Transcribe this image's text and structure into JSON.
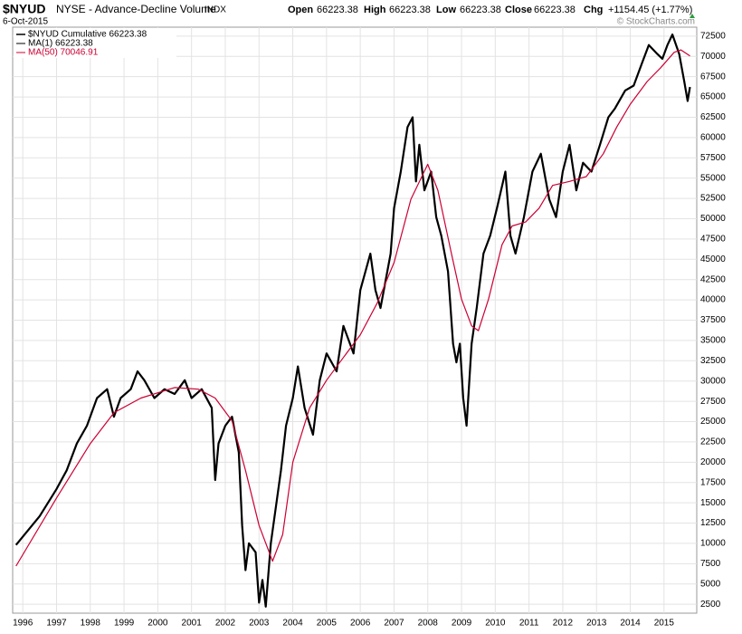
{
  "header": {
    "symbol": "$NYUD",
    "name": "NYSE - Advance-Decline Volume",
    "exchange": "INDX",
    "date": "6-Oct-2015",
    "stats": [
      {
        "label": "Open",
        "value": "66223.38"
      },
      {
        "label": "High",
        "value": "66223.38"
      },
      {
        "label": "Low",
        "value": "66223.38"
      },
      {
        "label": "Close",
        "value": "66223.38"
      },
      {
        "label": "Chg",
        "value": "+1154.45 (+1.77%)"
      }
    ],
    "copyright": "© StockCharts.com"
  },
  "chart_data": {
    "type": "line",
    "grid": true,
    "legend": "top-left",
    "ma1_label": "MA(1) 66223.38",
    "xlim": [
      1995.7,
      2015.97
    ],
    "xticks": [
      1996,
      1997,
      1998,
      1999,
      2000,
      2001,
      2002,
      2003,
      2004,
      2005,
      2006,
      2007,
      2008,
      2009,
      2010,
      2011,
      2012,
      2013,
      2014,
      2015
    ],
    "ylim": [
      1400,
      73600
    ],
    "yticks": [
      2500,
      5000,
      7500,
      10000,
      12500,
      15000,
      17500,
      20000,
      22500,
      25000,
      27500,
      30000,
      32500,
      35000,
      37500,
      40000,
      42500,
      45000,
      47500,
      50000,
      52500,
      55000,
      57500,
      60000,
      62500,
      65000,
      67500,
      70000,
      72500
    ],
    "series": [
      {
        "name": "$NYUD Cumulative 66223.38",
        "color": "#000000",
        "x": [
          1995.8,
          1996.5,
          1997.0,
          1997.3,
          1997.6,
          1997.9,
          1998.2,
          1998.5,
          1998.7,
          1998.9,
          1999.2,
          1999.4,
          1999.6,
          1999.9,
          2000.2,
          2000.5,
          2000.8,
          2001.0,
          2001.3,
          2001.6,
          2001.7,
          2001.8,
          2002.0,
          2002.2,
          2002.4,
          2002.5,
          2002.6,
          2002.7,
          2002.9,
          2003.0,
          2003.1,
          2003.2,
          2003.35,
          2003.5,
          2003.65,
          2003.8,
          2004.0,
          2004.15,
          2004.35,
          2004.6,
          2004.8,
          2005.0,
          2005.3,
          2005.5,
          2005.8,
          2006.0,
          2006.3,
          2006.45,
          2006.6,
          2006.9,
          2007.0,
          2007.2,
          2007.4,
          2007.55,
          2007.65,
          2007.75,
          2007.9,
          2008.1,
          2008.25,
          2008.4,
          2008.6,
          2008.75,
          2008.85,
          2008.95,
          2009.05,
          2009.15,
          2009.3,
          2009.45,
          2009.65,
          2009.85,
          2010.05,
          2010.3,
          2010.45,
          2010.6,
          2010.85,
          2011.1,
          2011.35,
          2011.6,
          2011.8,
          2012.0,
          2012.2,
          2012.4,
          2012.6,
          2012.85,
          2013.1,
          2013.35,
          2013.55,
          2013.85,
          2014.1,
          2014.35,
          2014.55,
          2014.8,
          2014.95,
          2015.1,
          2015.25,
          2015.45,
          2015.6,
          2015.7,
          2015.77
        ],
        "values": [
          9800,
          13350,
          16700,
          19000,
          22300,
          24500,
          27900,
          29000,
          25600,
          27900,
          29000,
          31200,
          30100,
          27900,
          29000,
          28400,
          30100,
          27900,
          29000,
          26700,
          17800,
          22300,
          24500,
          25600,
          21200,
          12200,
          6700,
          10000,
          8900,
          2700,
          5500,
          2200,
          10000,
          14500,
          19000,
          24500,
          27900,
          31800,
          26700,
          23400,
          30100,
          33400,
          31200,
          36800,
          33400,
          41200,
          45700,
          41200,
          39000,
          45700,
          51300,
          55800,
          61300,
          62500,
          54600,
          59100,
          53500,
          55800,
          50200,
          47900,
          43500,
          34600,
          32300,
          34600,
          27900,
          24500,
          34600,
          39000,
          45700,
          47900,
          51300,
          55800,
          47900,
          45700,
          50200,
          55800,
          58000,
          52400,
          50200,
          55800,
          59100,
          53500,
          56900,
          55800,
          59100,
          62500,
          63600,
          65800,
          66400,
          69200,
          71400,
          70300,
          69700,
          71400,
          72700,
          70300,
          66900,
          64500,
          66223.38
        ]
      },
      {
        "name": "MA(50) 70046.91",
        "color": "#cc0033",
        "x": [
          1995.8,
          1997.0,
          1998.0,
          1998.7,
          1999.5,
          2000.5,
          2001.2,
          2001.7,
          2002.2,
          2002.6,
          2003.0,
          2003.4,
          2003.7,
          2004.0,
          2004.5,
          2005.0,
          2005.5,
          2006.0,
          2006.5,
          2007.0,
          2007.5,
          2008.0,
          2008.3,
          2008.7,
          2009.0,
          2009.3,
          2009.5,
          2009.8,
          2010.2,
          2010.5,
          2010.9,
          2011.3,
          2011.7,
          2012.2,
          2012.7,
          2013.2,
          2013.6,
          2014.0,
          2014.5,
          2014.9,
          2015.3,
          2015.5,
          2015.77
        ],
        "values": [
          7200,
          15600,
          22300,
          26100,
          27900,
          29200,
          29000,
          27900,
          25100,
          19000,
          12200,
          7800,
          11100,
          20000,
          26700,
          30100,
          32900,
          35700,
          39600,
          44600,
          52400,
          56700,
          53500,
          45700,
          40100,
          36800,
          36200,
          40100,
          46800,
          49100,
          49600,
          51300,
          54100,
          54600,
          55200,
          58000,
          61300,
          64100,
          66900,
          68600,
          70500,
          70800,
          70046.91
        ]
      }
    ]
  }
}
